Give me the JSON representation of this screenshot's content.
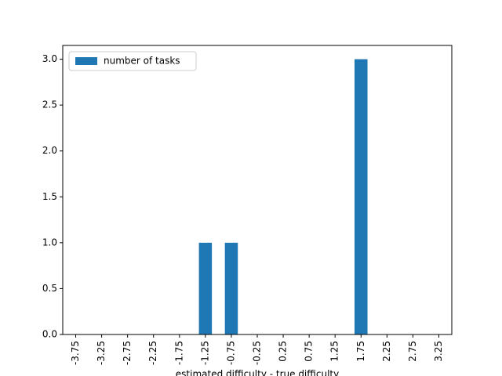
{
  "chart_data": {
    "type": "bar",
    "x_label": "estimated difficulty - true difficulty",
    "categories": [
      "-3.75",
      "-3.25",
      "-2.75",
      "-2.25",
      "-1.75",
      "-1.25",
      "-0.75",
      "-0.25",
      "0.25",
      "0.75",
      "1.25",
      "1.75",
      "2.25",
      "2.75",
      "3.25"
    ],
    "series": [
      {
        "name": "number of tasks",
        "color": "#1f77b4",
        "values": [
          0,
          0,
          0,
          0,
          0,
          1,
          1,
          0,
          0,
          0,
          0,
          3,
          0,
          0,
          0
        ]
      }
    ],
    "ylim": [
      0,
      3.15
    ],
    "yticks": [
      {
        "value": 0,
        "label": "0.0"
      },
      0.5,
      {
        "value": 1,
        "label": "1.0"
      },
      1.5,
      {
        "value": 2,
        "label": "2.0"
      },
      2.5,
      {
        "value": 3,
        "label": "3.0"
      }
    ],
    "legend": "upper left"
  }
}
